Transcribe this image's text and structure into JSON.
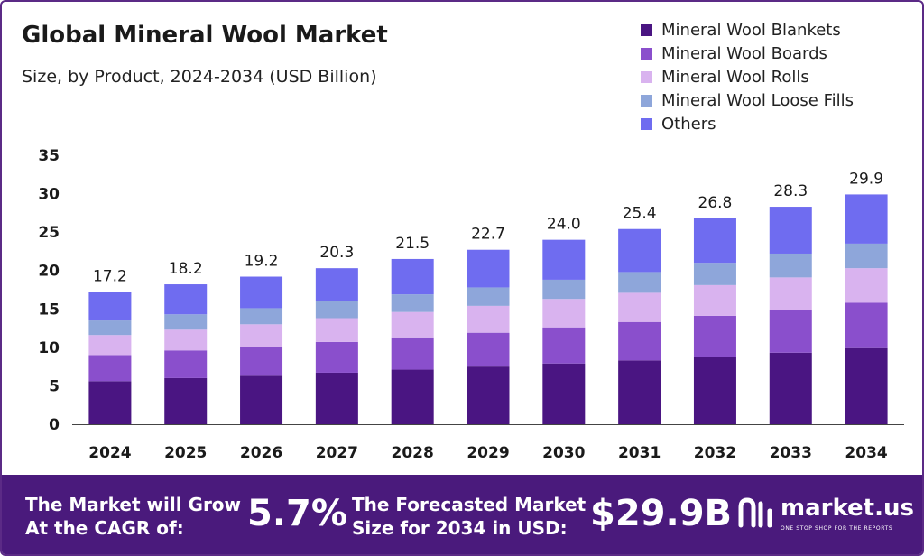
{
  "header": {
    "title": "Global Mineral Wool Market",
    "subtitle": "Size, by Product, 2024-2034 (USD Billion)"
  },
  "chart_data": {
    "type": "bar",
    "stacked": true,
    "categories": [
      "2024",
      "2025",
      "2026",
      "2027",
      "2028",
      "2029",
      "2030",
      "2031",
      "2032",
      "2033",
      "2034"
    ],
    "totals": [
      "17.2",
      "18.2",
      "19.2",
      "20.3",
      "21.5",
      "22.7",
      "24.0",
      "25.4",
      "26.8",
      "28.3",
      "29.9"
    ],
    "series": [
      {
        "name": "Mineral Wool Blankets",
        "color": "#4a1582",
        "values": [
          5.6,
          6.0,
          6.3,
          6.7,
          7.1,
          7.5,
          7.9,
          8.3,
          8.8,
          9.3,
          9.9
        ]
      },
      {
        "name": "Mineral Wool Boards",
        "color": "#8a4fcc",
        "values": [
          3.4,
          3.6,
          3.8,
          4.0,
          4.2,
          4.4,
          4.7,
          5.0,
          5.3,
          5.6,
          5.9
        ]
      },
      {
        "name": "Mineral Wool Rolls",
        "color": "#d9b3ef",
        "values": [
          2.6,
          2.7,
          2.9,
          3.1,
          3.3,
          3.5,
          3.7,
          3.8,
          4.0,
          4.2,
          4.5
        ]
      },
      {
        "name": "Mineral Wool Loose Fills",
        "color": "#8ea6da",
        "values": [
          1.9,
          2.0,
          2.1,
          2.2,
          2.3,
          2.4,
          2.5,
          2.7,
          2.9,
          3.1,
          3.2
        ]
      },
      {
        "name": "Others",
        "color": "#6f6cf0",
        "values": [
          3.7,
          3.9,
          4.1,
          4.3,
          4.6,
          4.9,
          5.2,
          5.6,
          5.8,
          6.1,
          6.4
        ]
      }
    ],
    "yticks": [
      "0",
      "5",
      "10",
      "15",
      "20",
      "25",
      "30",
      "35"
    ],
    "ylim": [
      0,
      35
    ],
    "grid": false,
    "legend_position": "top-right"
  },
  "footer": {
    "cagr_label_line1": "The Market will Grow",
    "cagr_label_line2": "At the CAGR of:",
    "cagr_value": "5.7%",
    "forecast_label_line1": "The Forecasted Market",
    "forecast_label_line2": "Size for 2034 in USD:",
    "forecast_value": "$29.9B",
    "brand_name": "market.us",
    "brand_tagline": "ONE STOP SHOP FOR THE REPORTS"
  }
}
